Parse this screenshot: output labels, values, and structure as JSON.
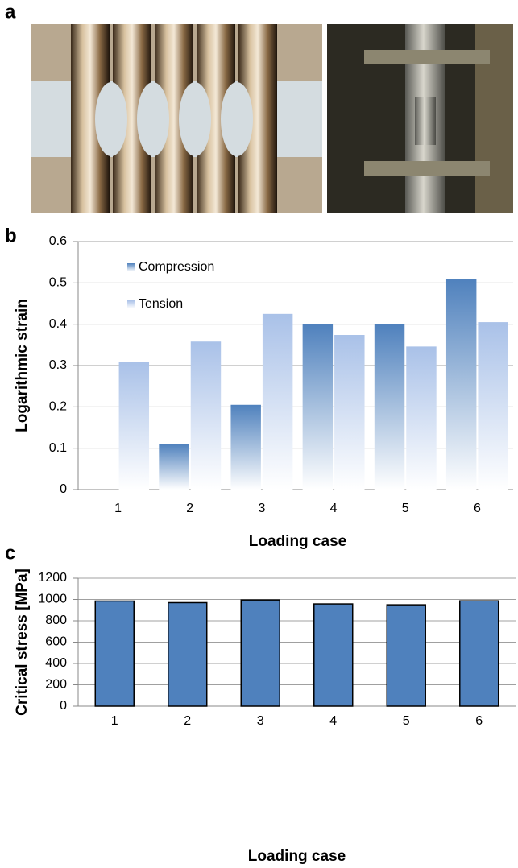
{
  "panel_labels": [
    "a",
    "b",
    "c"
  ],
  "chart_data": [
    {
      "type": "bar",
      "panel": "b",
      "x_label": "Loading case",
      "y_label": "Logarithmic strain",
      "categories": [
        "1",
        "2",
        "3",
        "4",
        "5",
        "6"
      ],
      "series": [
        {
          "name": "Compression",
          "color": "#4f81bd",
          "values": [
            null,
            0.11,
            0.205,
            0.4,
            0.4,
            0.51
          ]
        },
        {
          "name": "Tension",
          "color": "#a9c1e8",
          "values": [
            0.308,
            0.358,
            0.425,
            0.374,
            0.346,
            0.405
          ]
        }
      ],
      "ylim": [
        0,
        0.6
      ],
      "yticks": [
        0,
        0.1,
        0.2,
        0.3,
        0.4,
        0.5,
        0.6
      ],
      "grid": true,
      "legend": "upper left",
      "gradient": true
    },
    {
      "type": "bar",
      "panel": "c",
      "x_label": "Loading case",
      "y_label": "Critical stress [MPa]",
      "categories": [
        "1",
        "2",
        "3",
        "4",
        "5",
        "6"
      ],
      "values": [
        985,
        970,
        995,
        958,
        950,
        987
      ],
      "color": "#4f81bd",
      "ylim": [
        0,
        1200
      ],
      "yticks": [
        0,
        200,
        400,
        600,
        800,
        1000,
        1200
      ],
      "grid": true
    }
  ]
}
